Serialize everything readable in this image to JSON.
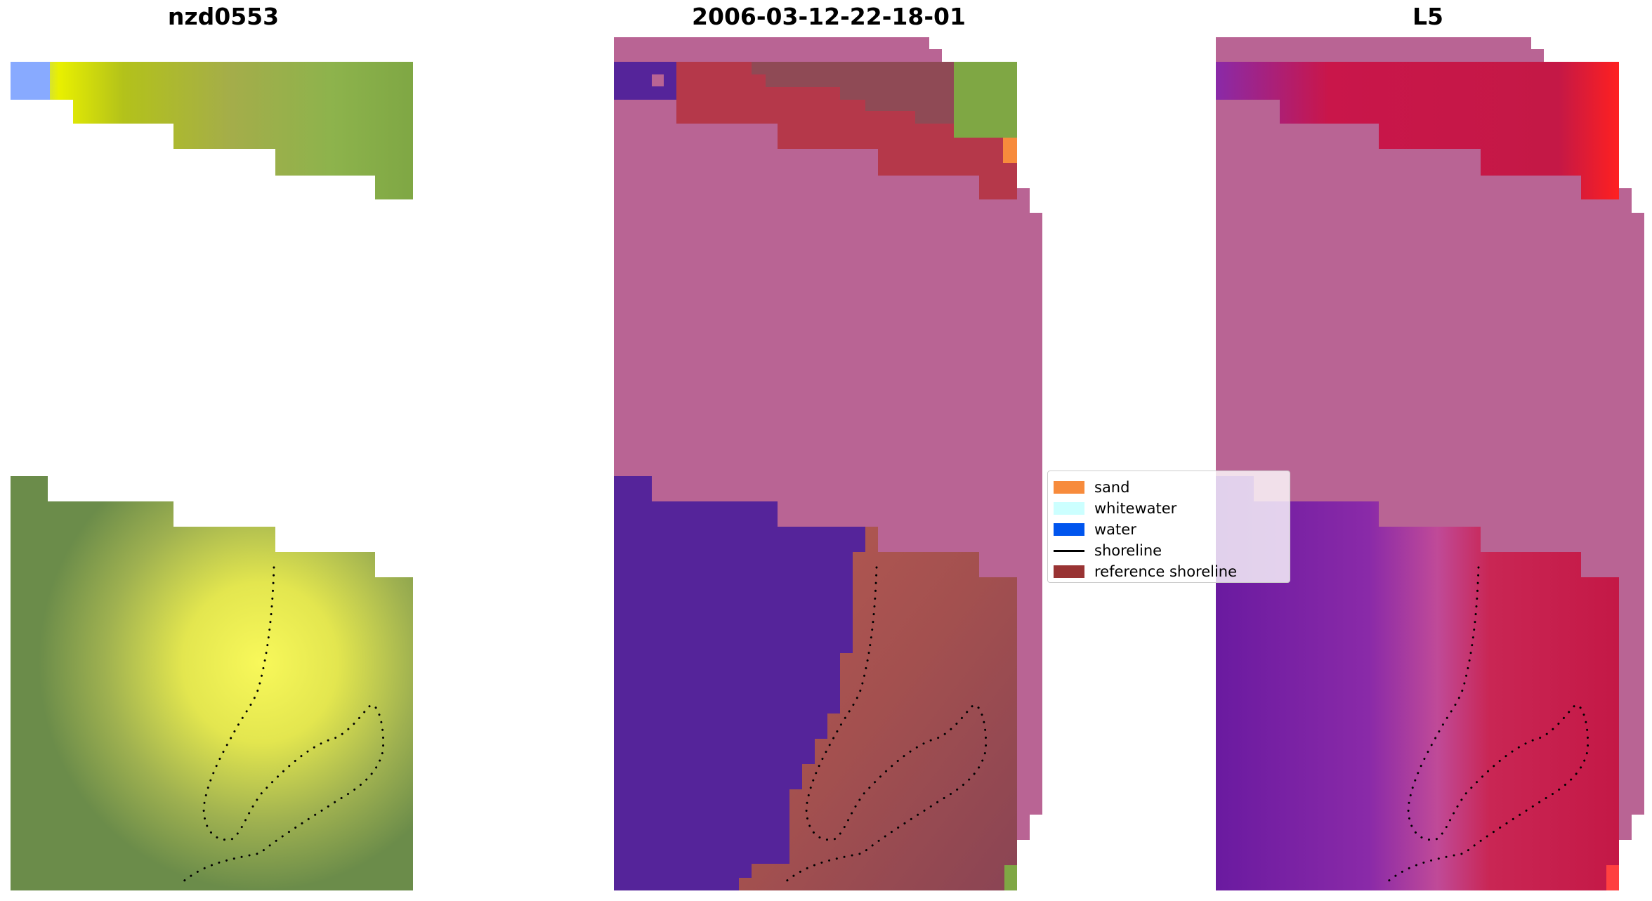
{
  "panels": [
    {
      "title": "nzd0553"
    },
    {
      "title": "2006-03-12-22-18-01"
    },
    {
      "title": "L5"
    }
  ],
  "legend": {
    "items": [
      {
        "label": "sand",
        "kind": "patch",
        "color": "#f78b3c"
      },
      {
        "label": "whitewater",
        "kind": "patch",
        "color": "#ccffff"
      },
      {
        "label": "water",
        "kind": "patch",
        "color": "#0055ee"
      },
      {
        "label": "shoreline",
        "kind": "line",
        "color": "#000000"
      },
      {
        "label": "reference shoreline",
        "kind": "patch",
        "color": "#993333"
      }
    ]
  },
  "colors": {
    "rgb_olive": "#8fa64a",
    "rgb_yellow": "#f2f45a",
    "rgb_dark_green": "#6b8c4a",
    "class_pink": "#b96494",
    "class_purple": "#55249a",
    "class_red": "#b5384a",
    "class_brown": "#8f4a55",
    "index_pink": "#b96494",
    "index_purple": "#7a1ea0",
    "index_red": "#c2184a"
  }
}
